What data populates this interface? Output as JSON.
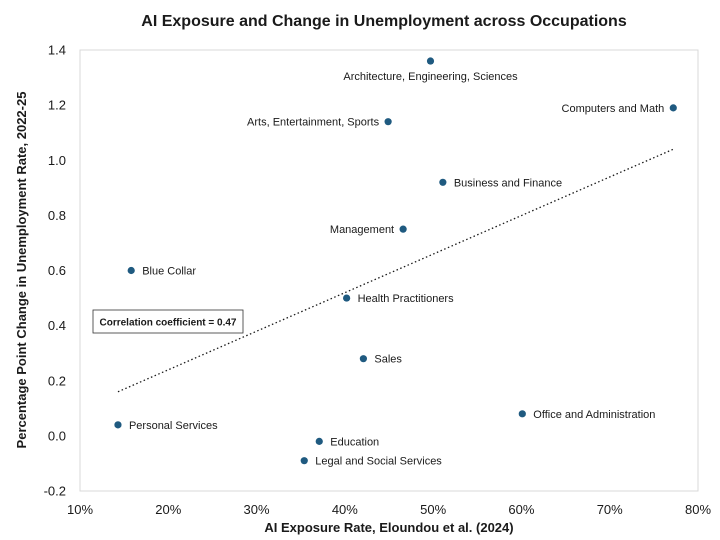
{
  "chart_data": {
    "type": "scatter",
    "title": "AI Exposure and Change in Unemployment across Occupations",
    "xlabel": "AI Exposure Rate, Eloundou et al. (2024)",
    "ylabel": "Percentage Point Change in Unemployment Rate, 2022-25",
    "xlim": [
      0.1,
      0.8
    ],
    "ylim": [
      -0.2,
      1.4
    ],
    "x_ticks": [
      0.1,
      0.2,
      0.3,
      0.4,
      0.5,
      0.6,
      0.7,
      0.8
    ],
    "x_tick_labels": [
      "10%",
      "20%",
      "30%",
      "40%",
      "50%",
      "60%",
      "70%",
      "80%"
    ],
    "y_ticks": [
      -0.2,
      0.0,
      0.2,
      0.4,
      0.6,
      0.8,
      1.0,
      1.2,
      1.4
    ],
    "y_tick_labels": [
      "-0.2",
      "0.0",
      "0.2",
      "0.4",
      "0.6",
      "0.8",
      "1.0",
      "1.2",
      "1.4"
    ],
    "grid": false,
    "marker_color": "#1f5a80",
    "points": [
      {
        "label": "Architecture, Engineering, Sciences",
        "x": 0.497,
        "y": 1.36,
        "label_pos": "below"
      },
      {
        "label": "Computers and Math",
        "x": 0.772,
        "y": 1.19,
        "label_pos": "left"
      },
      {
        "label": "Arts, Entertainment, Sports",
        "x": 0.449,
        "y": 1.14,
        "label_pos": "left"
      },
      {
        "label": "Business and Finance",
        "x": 0.511,
        "y": 0.92,
        "label_pos": "right"
      },
      {
        "label": "Management",
        "x": 0.466,
        "y": 0.75,
        "label_pos": "left"
      },
      {
        "label": "Blue Collar",
        "x": 0.158,
        "y": 0.6,
        "label_pos": "right"
      },
      {
        "label": "Health Practitioners",
        "x": 0.402,
        "y": 0.5,
        "label_pos": "right"
      },
      {
        "label": "Sales",
        "x": 0.421,
        "y": 0.28,
        "label_pos": "right"
      },
      {
        "label": "Office and Administration",
        "x": 0.601,
        "y": 0.08,
        "label_pos": "right"
      },
      {
        "label": "Personal Services",
        "x": 0.143,
        "y": 0.04,
        "label_pos": "right"
      },
      {
        "label": "Education",
        "x": 0.371,
        "y": -0.02,
        "label_pos": "right"
      },
      {
        "label": "Legal and Social Services",
        "x": 0.354,
        "y": -0.09,
        "label_pos": "right"
      }
    ],
    "trendline": {
      "style": "dotted",
      "x": [
        0.143,
        0.772
      ],
      "y": [
        0.16,
        1.04
      ]
    },
    "annotation": "Correlation coefficient = 0.47"
  }
}
